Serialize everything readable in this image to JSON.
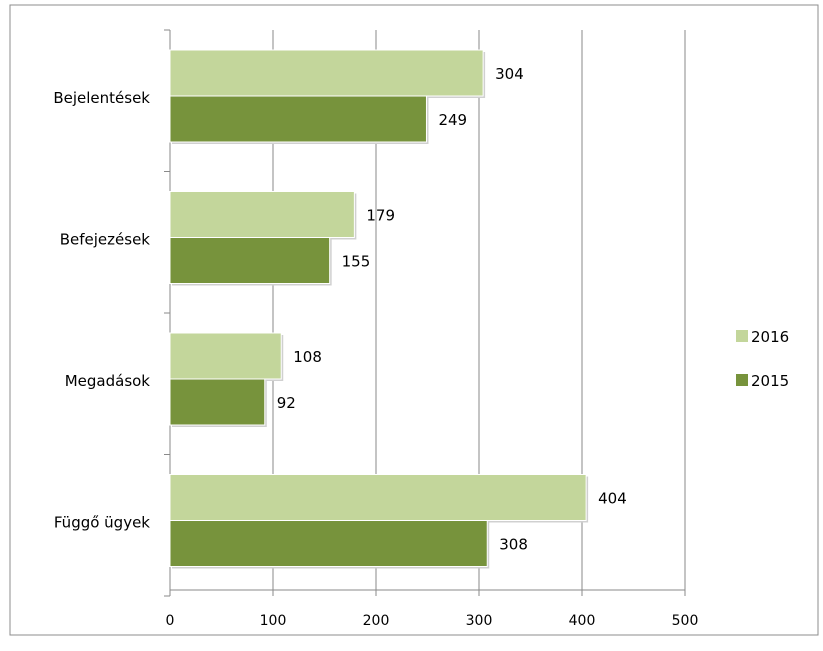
{
  "chart_data": {
    "type": "bar",
    "orientation": "horizontal",
    "categories": [
      "Bejelentések",
      "Befejezések",
      "Megadások",
      "Függő ügyek"
    ],
    "series": [
      {
        "name": "2016",
        "values": [
          304,
          179,
          108,
          404
        ],
        "color": "#c3d69b"
      },
      {
        "name": "2015",
        "values": [
          249,
          155,
          92,
          308
        ],
        "color": "#77933c"
      }
    ],
    "xlim": [
      0,
      500
    ],
    "xticks": [
      0,
      100,
      200,
      300,
      400,
      500
    ],
    "grid": true,
    "legend": "right"
  }
}
